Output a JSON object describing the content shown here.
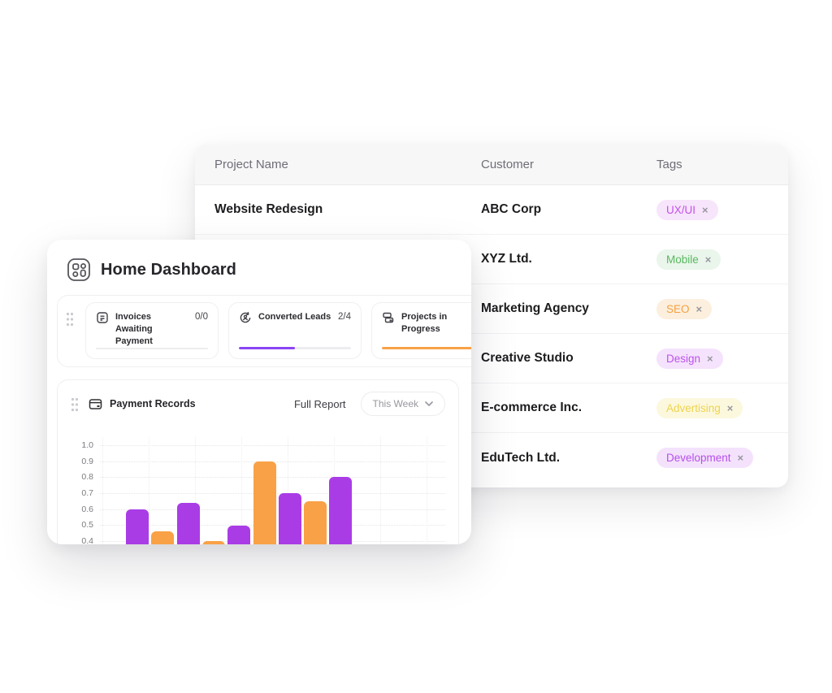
{
  "colors": {
    "bar_purple": "#AA3CE6",
    "bar_orange": "#F9A146",
    "progress_purple": "#8B44F6",
    "progress_orange": "#F9A146",
    "progress_empty_track": "#EDEDF0"
  },
  "table_card": {
    "columns": [
      "Project Name",
      "Customer",
      "Tags"
    ],
    "remove_icon": "×",
    "rows": [
      {
        "project": "Website Redesign",
        "customer": "ABC Corp",
        "tag": {
          "label": "UX/UI",
          "text_color": "#C44FE8",
          "bg_color": "#F7E5FC"
        }
      },
      {
        "project": "",
        "customer": "XYZ Ltd.",
        "tag": {
          "label": "Mobile",
          "text_color": "#58B95F",
          "bg_color": "#EAF5EB"
        }
      },
      {
        "project": "",
        "customer": "Marketing Agency",
        "tag": {
          "label": "SEO",
          "text_color": "#F6A13F",
          "bg_color": "#FCEFDE"
        }
      },
      {
        "project": "",
        "customer": "Creative Studio",
        "tag": {
          "label": "Design",
          "text_color": "#BC53EA",
          "bg_color": "#F5E2FC"
        }
      },
      {
        "project": "",
        "customer": "E-commerce Inc.",
        "tag": {
          "label": "Advertising",
          "text_color": "#EDD44F",
          "bg_color": "#FCF8DD"
        }
      },
      {
        "project": "",
        "customer": "EduTech Ltd.",
        "tag": {
          "label": "Development",
          "text_color": "#B64FEA",
          "bg_color": "#F4E2FC"
        }
      }
    ]
  },
  "dashboard": {
    "title": "Home Dashboard",
    "stats": [
      {
        "label": "Invoices Awaiting Payment",
        "value": "0/0",
        "progress_percent": 0,
        "progress_color": "#EDEDF0",
        "icon": "invoice-icon"
      },
      {
        "label": "Converted Leads",
        "value": "2/4",
        "progress_percent": 50,
        "progress_color": "#8B44F6",
        "icon": "convert-leads-icon"
      },
      {
        "label": "Projects in Progress",
        "value": "",
        "progress_percent": 100,
        "progress_color": "#F9A146",
        "icon": "projects-icon"
      }
    ],
    "payment_panel": {
      "title": "Payment Records",
      "full_report_label": "Full Report",
      "period_selector": "This Week"
    }
  },
  "chart_data": {
    "type": "bar",
    "title": "Payment Records",
    "x": [
      1,
      2,
      3,
      4,
      5,
      6,
      7,
      8,
      9
    ],
    "values": [
      0.6,
      0.46,
      0.64,
      0.4,
      0.5,
      0.9,
      0.7,
      0.65,
      0.8
    ],
    "bar_colors": [
      "#AA3CE6",
      "#F9A146",
      "#AA3CE6",
      "#F9A146",
      "#AA3CE6",
      "#F9A146",
      "#AA3CE6",
      "#F9A146",
      "#AA3CE6"
    ],
    "y_ticks": [
      "1.0",
      "0.9",
      "0.8",
      "0.7",
      "0.6",
      "0.5",
      "0.4"
    ],
    "ylim_visible": [
      0.325,
      1.05
    ],
    "xlabel": "",
    "ylabel": "",
    "grid": "dotted",
    "legend": "none",
    "note": "bars are clipped at the bottom edge of the card; no x tick labels visible"
  }
}
